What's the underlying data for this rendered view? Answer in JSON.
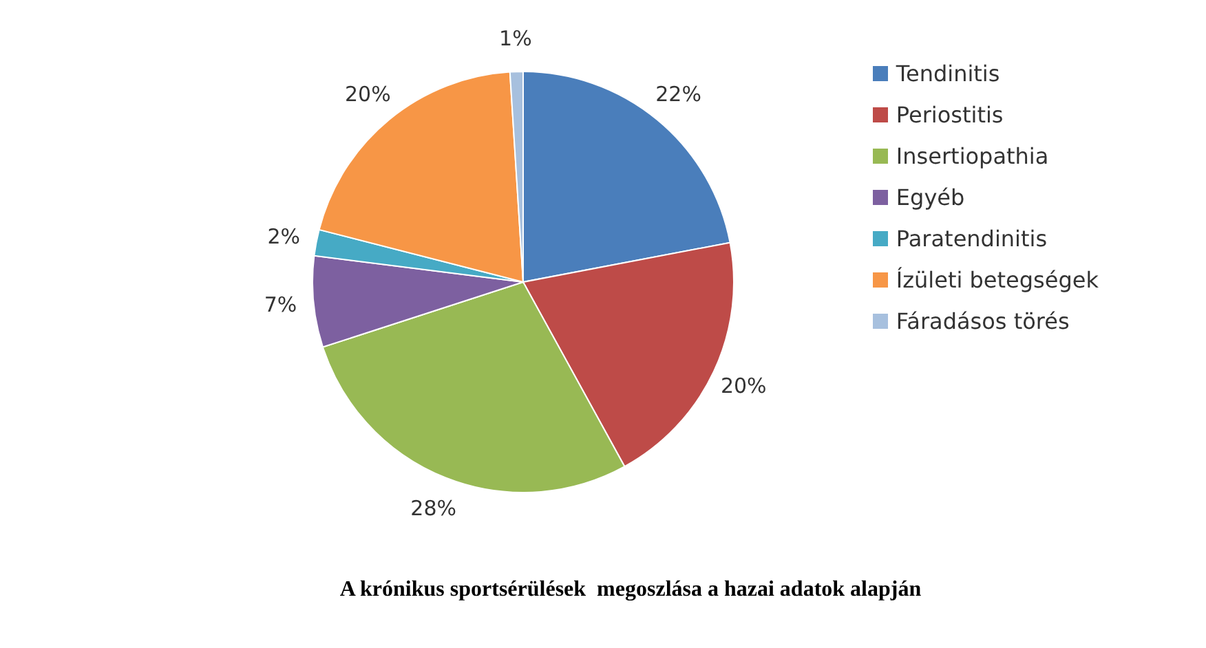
{
  "chart_data": {
    "type": "pie",
    "title": "A krónikus sportsérülések  megoszlása a hazai adatok alapján",
    "categories": [
      "Tendinitis",
      "Periostitis",
      "Insertiopathia",
      "Egyéb",
      "Paratendinitis",
      "Ízületi betegségek",
      "Fáradásos törés"
    ],
    "values": [
      22,
      20,
      28,
      7,
      2,
      20,
      1
    ],
    "colors": [
      "#4a7ebb",
      "#be4b48",
      "#98b954",
      "#7d60a0",
      "#46aac5",
      "#f79646",
      "#a7c0de"
    ],
    "value_labels": [
      "22%",
      "20%",
      "28%",
      "7%",
      "2%",
      "20%",
      "1%"
    ],
    "legend": "right"
  }
}
